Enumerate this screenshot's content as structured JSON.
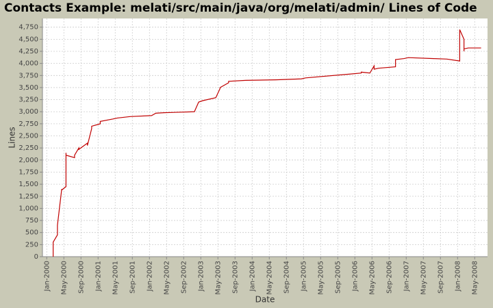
{
  "chart_data": {
    "type": "line",
    "title": "Contacts Example: melati/src/main/java/org/melati/admin/ Lines of Code",
    "x_label": "Date",
    "y_label": "Lines",
    "x": [
      "2000-02",
      "2000-02",
      "2000-03",
      "2000-03",
      "2000-03",
      "2000-04",
      "2000-04",
      "2000-05",
      "2000-05",
      "2000-05",
      "2000-07",
      "2000-07",
      "2000-08",
      "2000-08",
      "2000-10",
      "2000-10",
      "2000-11",
      "2000-11",
      "2001-01",
      "2001-01",
      "2001-04",
      "2001-05",
      "2001-08",
      "2002-01",
      "2002-02",
      "2002-04",
      "2002-11",
      "2002-12",
      "2003-01",
      "2003-04",
      "2003-05",
      "2003-05",
      "2003-07",
      "2003-07",
      "2003-11",
      "2004-06",
      "2004-12",
      "2005-01",
      "2006-02",
      "2006-02",
      "2006-04",
      "2006-05",
      "2006-05",
      "2006-06",
      "2006-10",
      "2006-10",
      "2006-12",
      "2007-01",
      "2007-07",
      "2007-10",
      "2008-01",
      "2008-01",
      "2008-01",
      "2008-02",
      "2008-02",
      "2008-02",
      "2008-03",
      "2008-06"
    ],
    "series": [
      {
        "name": "Lines",
        "color": "#c00000",
        "values": [
          0,
          300,
          450,
          600,
          650,
          1400,
          1380,
          1450,
          2150,
          2100,
          2050,
          2100,
          2250,
          2220,
          2350,
          2300,
          2650,
          2700,
          2750,
          2800,
          2850,
          2870,
          2900,
          2920,
          2970,
          2980,
          3000,
          3200,
          3230,
          3290,
          3480,
          3500,
          3600,
          3630,
          3650,
          3660,
          3680,
          3700,
          3800,
          3820,
          3800,
          3950,
          3880,
          3900,
          3930,
          4080,
          4100,
          4120,
          4100,
          4090,
          4050,
          4250,
          4700,
          4500,
          4250,
          4300,
          4320,
          4320
        ]
      }
    ],
    "xlim": [
      "1999-12",
      "2008-08"
    ],
    "xticks": [
      {
        "value": "2000-01",
        "label": "Jan-2000"
      },
      {
        "value": "2000-05",
        "label": "May-2000"
      },
      {
        "value": "2000-09",
        "label": "Sep-2000"
      },
      {
        "value": "2001-01",
        "label": "Jan-2001"
      },
      {
        "value": "2001-05",
        "label": "May-2001"
      },
      {
        "value": "2001-09",
        "label": "Sep-2001"
      },
      {
        "value": "2002-01",
        "label": "Jan-2002"
      },
      {
        "value": "2002-05",
        "label": "May-2002"
      },
      {
        "value": "2002-09",
        "label": "Sep-2002"
      },
      {
        "value": "2003-01",
        "label": "Jan-2003"
      },
      {
        "value": "2003-05",
        "label": "May-2003"
      },
      {
        "value": "2003-09",
        "label": "Sep-2003"
      },
      {
        "value": "2004-01",
        "label": "Jan-2004"
      },
      {
        "value": "2004-05",
        "label": "May-2004"
      },
      {
        "value": "2004-09",
        "label": "Sep-2004"
      },
      {
        "value": "2005-01",
        "label": "Jan-2005"
      },
      {
        "value": "2005-05",
        "label": "May-2005"
      },
      {
        "value": "2005-09",
        "label": "Sep-2005"
      },
      {
        "value": "2006-01",
        "label": "Jan-2006"
      },
      {
        "value": "2006-05",
        "label": "May-2006"
      },
      {
        "value": "2006-09",
        "label": "Sep-2006"
      },
      {
        "value": "2007-01",
        "label": "Jan-2007"
      },
      {
        "value": "2007-05",
        "label": "May-2007"
      },
      {
        "value": "2007-09",
        "label": "Sep-2007"
      },
      {
        "value": "2008-01",
        "label": "Jan-2008"
      },
      {
        "value": "2008-05",
        "label": "May-2008"
      }
    ],
    "ylim": [
      0,
      4930
    ],
    "yticks": [
      0,
      250,
      500,
      750,
      {
        "value": 1000,
        "label": "1,000"
      },
      {
        "value": 1250,
        "label": "1,250"
      },
      {
        "value": 1500,
        "label": "1,500"
      },
      {
        "value": 1750,
        "label": "1,750"
      },
      {
        "value": 2000,
        "label": "2,000"
      },
      {
        "value": 2250,
        "label": "2,250"
      },
      {
        "value": 2500,
        "label": "2,500"
      },
      {
        "value": 2750,
        "label": "2,750"
      },
      {
        "value": 3000,
        "label": "3,000"
      },
      {
        "value": 3250,
        "label": "3,250"
      },
      {
        "value": 3500,
        "label": "3,500"
      },
      {
        "value": 3750,
        "label": "3,750"
      },
      {
        "value": 4000,
        "label": "4,000"
      },
      {
        "value": 4250,
        "label": "4,250"
      },
      {
        "value": 4500,
        "label": "4,500"
      },
      {
        "value": 4750,
        "label": "4,750"
      }
    ],
    "grid": true
  }
}
